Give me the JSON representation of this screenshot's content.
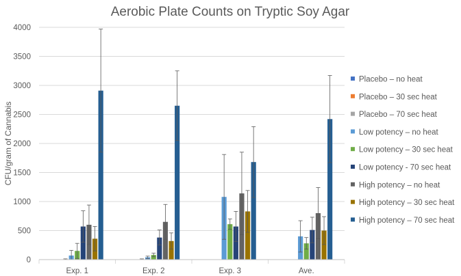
{
  "chart_data": {
    "type": "bar",
    "title": "Aerobic Plate Counts on Tryptic Soy Agar",
    "xlabel": "",
    "ylabel": "CFU/gram of Cannabis",
    "ylim": [
      0,
      4000
    ],
    "yticks": [
      0,
      500,
      1000,
      1500,
      2000,
      2500,
      3000,
      3500,
      4000
    ],
    "categories": [
      "Exp. 1",
      "Exp. 2",
      "Exp. 3",
      "Ave."
    ],
    "legend_position": "right",
    "error_bars": true,
    "series": [
      {
        "name": "Placebo – no heat",
        "color": "#4472c4",
        "values": [
          0,
          0,
          0,
          0
        ],
        "errors": [
          0,
          0,
          0,
          0
        ]
      },
      {
        "name": "Placebo – 30 sec heat",
        "color": "#ed7d31",
        "values": [
          0,
          0,
          0,
          0
        ],
        "errors": [
          0,
          0,
          0,
          0
        ]
      },
      {
        "name": "Placebo – 70 sec heat",
        "color": "#a5a5a5",
        "values": [
          5,
          5,
          0,
          0
        ],
        "errors": [
          8,
          8,
          0,
          0
        ]
      },
      {
        "name": "Low potency – no heat",
        "color": "#5b9bd5",
        "values": [
          70,
          40,
          1080,
          400
        ],
        "errors": [
          90,
          20,
          730,
          270
        ]
      },
      {
        "name": "Low potency – 30 sec heat",
        "color": "#70ad47",
        "values": [
          150,
          80,
          610,
          280
        ],
        "errors": [
          130,
          30,
          90,
          100
        ]
      },
      {
        "name": "Low potency - 70 sec heat",
        "color": "#264478",
        "values": [
          570,
          380,
          570,
          510
        ],
        "errors": [
          270,
          130,
          260,
          220
        ]
      },
      {
        "name": "High potency – no heat",
        "color": "#636363",
        "values": [
          600,
          650,
          1140,
          800
        ],
        "errors": [
          340,
          300,
          710,
          440
        ]
      },
      {
        "name": "High potency – 30 sec heat",
        "color": "#997300",
        "values": [
          360,
          320,
          830,
          500
        ],
        "errors": [
          210,
          140,
          360,
          240
        ]
      },
      {
        "name": "High potency – 70 sec heat",
        "color": "#255e91",
        "values": [
          2910,
          2650,
          1680,
          2420
        ],
        "errors": [
          1060,
          600,
          610,
          750
        ]
      }
    ]
  }
}
